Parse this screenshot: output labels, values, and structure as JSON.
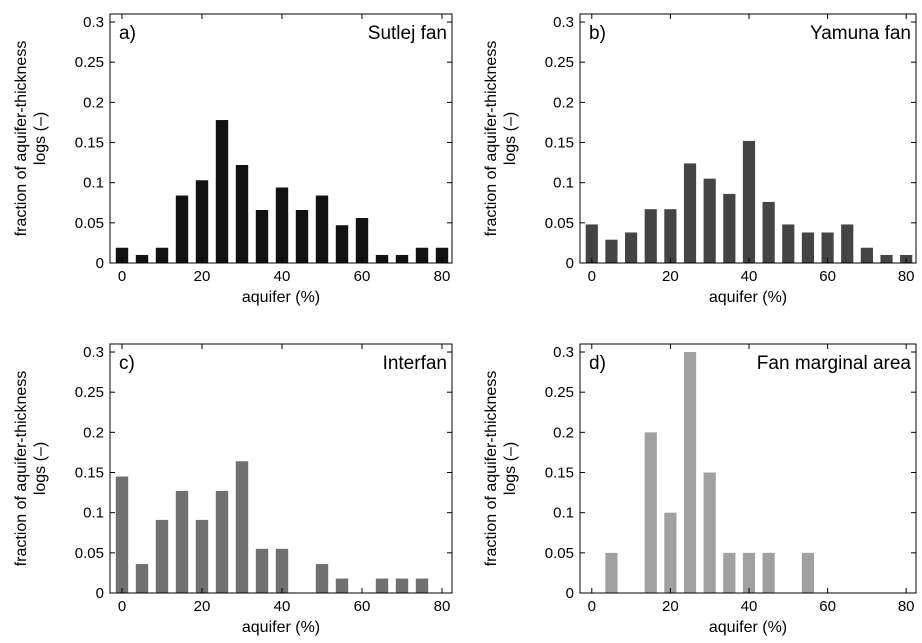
{
  "chart_data": [
    {
      "type": "bar",
      "panel_label": "a)",
      "title": "Sutlej fan",
      "color": "#111111",
      "xlabel": "aquifer (%)",
      "ylabel": "fraction of aquifer-thickness logs (–)",
      "ylabel_lines": [
        "fraction of aquifer-thickness",
        "logs (–)"
      ],
      "xlim": [
        -3,
        82.5
      ],
      "ylim": [
        0,
        0.31
      ],
      "xticks": [
        0,
        20,
        40,
        60,
        80
      ],
      "yticks": [
        0,
        0.05,
        0.1,
        0.15,
        0.2,
        0.25,
        0.3
      ],
      "x": [
        0,
        5,
        10,
        15,
        20,
        25,
        30,
        35,
        40,
        45,
        50,
        55,
        60,
        65,
        70,
        75,
        80
      ],
      "values": [
        0.019,
        0.01,
        0.019,
        0.084,
        0.103,
        0.178,
        0.122,
        0.066,
        0.094,
        0.066,
        0.084,
        0.047,
        0.056,
        0.01,
        0.01,
        0.019,
        0.019
      ]
    },
    {
      "type": "bar",
      "panel_label": "b)",
      "title": "Yamuna fan",
      "color": "#444444",
      "xlabel": "aquifer (%)",
      "ylabel": "fraction of aquifer-thickness logs (–)",
      "ylabel_lines": [
        "fraction of aquifer-thickness",
        "logs (–)"
      ],
      "xlim": [
        -3,
        82.5
      ],
      "ylim": [
        0,
        0.31
      ],
      "xticks": [
        0,
        20,
        40,
        60,
        80
      ],
      "yticks": [
        0,
        0.05,
        0.1,
        0.15,
        0.2,
        0.25,
        0.3
      ],
      "x": [
        0,
        5,
        10,
        15,
        20,
        25,
        30,
        35,
        40,
        45,
        50,
        55,
        60,
        65,
        70,
        75,
        80
      ],
      "values": [
        0.048,
        0.029,
        0.038,
        0.067,
        0.067,
        0.124,
        0.105,
        0.086,
        0.152,
        0.076,
        0.048,
        0.038,
        0.038,
        0.048,
        0.019,
        0.01,
        0.01
      ]
    },
    {
      "type": "bar",
      "panel_label": "c)",
      "title": "Interfan",
      "color": "#707070",
      "xlabel": "aquifer (%)",
      "ylabel": "fraction of aquifer-thickness logs (–)",
      "ylabel_lines": [
        "fraction of aquifer-thickness",
        "logs (–)"
      ],
      "xlim": [
        -3,
        82.5
      ],
      "ylim": [
        0,
        0.31
      ],
      "xticks": [
        0,
        20,
        40,
        60,
        80
      ],
      "yticks": [
        0,
        0.05,
        0.1,
        0.15,
        0.2,
        0.25,
        0.3
      ],
      "x": [
        0,
        5,
        10,
        15,
        20,
        25,
        30,
        35,
        40,
        45,
        50,
        55,
        60,
        65,
        70,
        75,
        80
      ],
      "values": [
        0.145,
        0.036,
        0.091,
        0.127,
        0.091,
        0.127,
        0.164,
        0.055,
        0.055,
        0,
        0.036,
        0.018,
        0,
        0.018,
        0.018,
        0.018,
        0
      ]
    },
    {
      "type": "bar",
      "panel_label": "d)",
      "title": "Fan marginal area",
      "color": "#a0a0a0",
      "xlabel": "aquifer (%)",
      "ylabel": "fraction of aquifer-thickness logs (–)",
      "ylabel_lines": [
        "fraction of aquifer-thickness",
        "logs (–)"
      ],
      "xlim": [
        -3,
        82.5
      ],
      "ylim": [
        0,
        0.31
      ],
      "xticks": [
        0,
        20,
        40,
        60,
        80
      ],
      "yticks": [
        0,
        0.05,
        0.1,
        0.15,
        0.2,
        0.25,
        0.3
      ],
      "x": [
        0,
        5,
        10,
        15,
        20,
        25,
        30,
        35,
        40,
        45,
        50,
        55,
        60,
        65,
        70,
        75,
        80
      ],
      "values": [
        0,
        0.05,
        0,
        0.2,
        0.1,
        0.3,
        0.15,
        0.05,
        0.05,
        0.05,
        0,
        0.05,
        0,
        0,
        0,
        0,
        0
      ]
    }
  ]
}
